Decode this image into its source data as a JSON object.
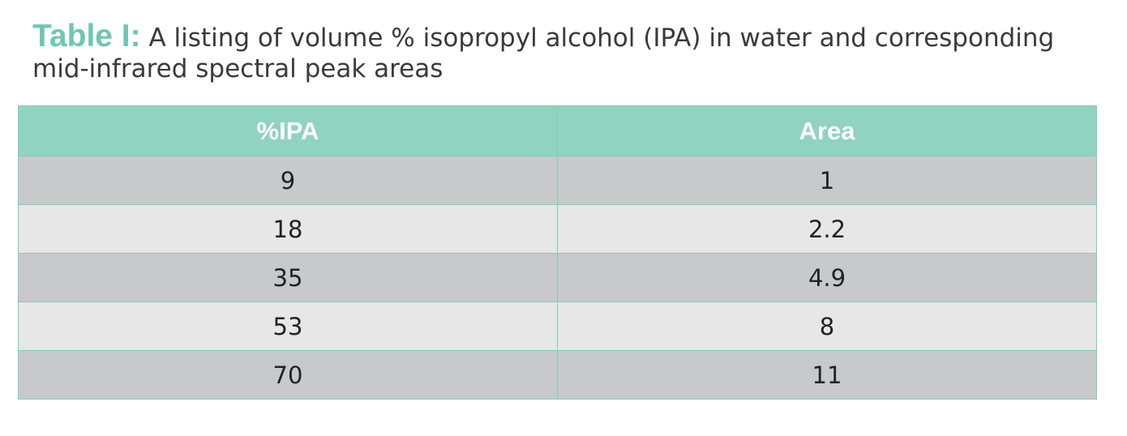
{
  "caption": {
    "label": "Table I:",
    "text": "A listing of volume % isopropyl alcohol (IPA) in water and corresponding mid-infrared spectral peak areas"
  },
  "table": {
    "headers": [
      "%IPA",
      "Area"
    ],
    "rows": [
      [
        "9",
        "1"
      ],
      [
        "18",
        "2.2"
      ],
      [
        "35",
        "4.9"
      ],
      [
        "53",
        "8"
      ],
      [
        "70",
        "11"
      ]
    ]
  },
  "colors": {
    "accent": "#6ec7b2",
    "header_bg": "#8fd3c0",
    "row_dark": "#c8c9cb",
    "row_light": "#e7e7e7",
    "border": "#82cdb9"
  },
  "chart_data": {
    "type": "table",
    "columns": [
      "%IPA",
      "Area"
    ],
    "rows": [
      [
        9,
        1
      ],
      [
        18,
        2.2
      ],
      [
        35,
        4.9
      ],
      [
        53,
        8
      ],
      [
        70,
        11
      ]
    ]
  }
}
